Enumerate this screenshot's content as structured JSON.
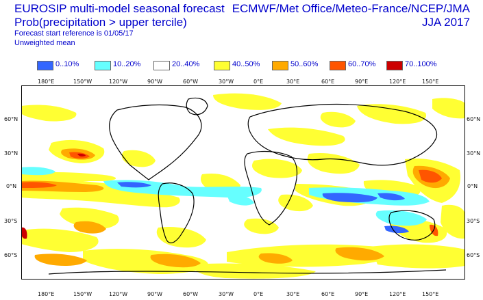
{
  "header": {
    "title_line1": "EUROSIP multi-model seasonal forecast",
    "title_line2": "Prob(precipitation > upper tercile)",
    "forecast_ref": "Forecast start reference is 01/05/17",
    "mean_type": "Unweighted mean",
    "centres": "ECMWF/Met Office/Meteo-France/NCEP/JMA",
    "season": "JJA 2017"
  },
  "legend": [
    {
      "label": "0..10%",
      "color": "#3366ff"
    },
    {
      "label": "10..20%",
      "color": "#66ffff"
    },
    {
      "label": "20..40%",
      "color": "#ffffff"
    },
    {
      "label": "40..50%",
      "color": "#ffff33"
    },
    {
      "label": "50..60%",
      "color": "#ffaa00"
    },
    {
      "label": "60..70%",
      "color": "#ff5500"
    },
    {
      "label": "70..100%",
      "color": "#cc0000"
    }
  ],
  "axes": {
    "lon_labels": [
      "180°E",
      "150°W",
      "120°W",
      "90°W",
      "60°W",
      "30°W",
      "0°E",
      "30°E",
      "60°E",
      "90°E",
      "120°E",
      "150°E"
    ],
    "lat_labels": [
      "60°N",
      "30°N",
      "0°N",
      "30°S",
      "60°S"
    ]
  }
}
